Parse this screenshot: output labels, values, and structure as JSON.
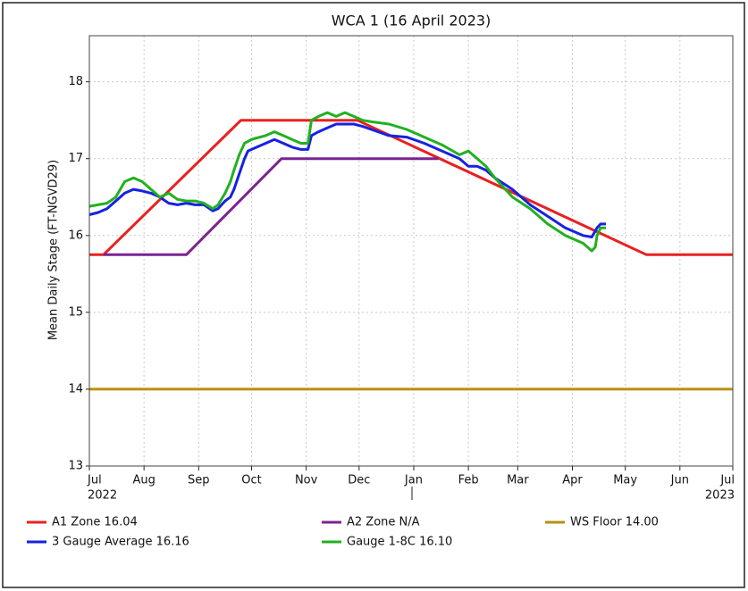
{
  "chart_data": {
    "type": "line",
    "title": "WCA 1 (16 April 2023)",
    "y_label": "Mean Daily Stage (FT-NGVD29)",
    "xlim": [
      0,
      365
    ],
    "xticks": [
      {
        "value": 0,
        "label": "Jul"
      },
      {
        "value": 31,
        "label": "Aug"
      },
      {
        "value": 62,
        "label": "Sep"
      },
      {
        "value": 92,
        "label": "Oct"
      },
      {
        "value": 123,
        "label": "Nov"
      },
      {
        "value": 153,
        "label": "Dec"
      },
      {
        "value": 184,
        "label": "Jan"
      },
      {
        "value": 215,
        "label": "Feb"
      },
      {
        "value": 243,
        "label": "Mar"
      },
      {
        "value": 274,
        "label": "Apr"
      },
      {
        "value": 304,
        "label": "May"
      },
      {
        "value": 335,
        "label": "Jun"
      },
      {
        "value": 365,
        "label": "Jul"
      }
    ],
    "year_labels": [
      {
        "value": 0,
        "label": "2022"
      },
      {
        "value": 365,
        "label": "2023"
      }
    ],
    "ylim": [
      13,
      18.6
    ],
    "yticks": [
      13,
      14,
      15,
      16,
      17,
      18
    ],
    "grid": true,
    "legend": "bottom",
    "series": [
      {
        "name": "A1 Zone 16.04",
        "color": "#e8211f",
        "x": [
          0,
          8,
          86,
          152,
          316,
          365
        ],
        "values": [
          15.75,
          15.75,
          17.5,
          17.5,
          15.75,
          15.75
        ]
      },
      {
        "name": "A2 Zone N/A",
        "color": "#7b2391",
        "x": [
          8,
          55,
          109,
          198
        ],
        "values": [
          15.75,
          15.75,
          17,
          17
        ]
      },
      {
        "name": "WS Floor 14.00",
        "color": "#b8900f",
        "x": [
          0,
          365
        ],
        "values": [
          14,
          14
        ]
      },
      {
        "name": "3 Gauge Average 16.16",
        "color": "#1622e0",
        "x": [
          0,
          5,
          10,
          15,
          20,
          25,
          30,
          35,
          40,
          45,
          50,
          55,
          60,
          65,
          70,
          73,
          77,
          80,
          82,
          85,
          88,
          90,
          95,
          100,
          105,
          110,
          115,
          120,
          124,
          126,
          130,
          135,
          140,
          145,
          150,
          155,
          160,
          170,
          180,
          190,
          200,
          210,
          215,
          220,
          225,
          230,
          240,
          250,
          260,
          270,
          275,
          280,
          285,
          288,
          290,
          293
        ],
        "values": [
          16.27,
          16.3,
          16.35,
          16.45,
          16.55,
          16.6,
          16.58,
          16.55,
          16.5,
          16.42,
          16.4,
          16.42,
          16.4,
          16.4,
          16.32,
          16.35,
          16.45,
          16.5,
          16.6,
          16.8,
          17.0,
          17.1,
          17.15,
          17.2,
          17.25,
          17.2,
          17.15,
          17.12,
          17.12,
          17.3,
          17.35,
          17.4,
          17.45,
          17.45,
          17.45,
          17.42,
          17.38,
          17.3,
          17.28,
          17.2,
          17.1,
          17.0,
          16.9,
          16.9,
          16.85,
          16.75,
          16.6,
          16.4,
          16.25,
          16.1,
          16.05,
          16.0,
          15.98,
          16.1,
          16.15,
          16.15
        ]
      },
      {
        "name": "Gauge 1-8C 16.10",
        "color": "#22b01f",
        "x": [
          0,
          10,
          15,
          20,
          25,
          30,
          35,
          40,
          45,
          50,
          55,
          60,
          65,
          70,
          73,
          77,
          80,
          82,
          85,
          88,
          92,
          95,
          100,
          105,
          110,
          115,
          120,
          124,
          126,
          130,
          135,
          140,
          145,
          150,
          155,
          160,
          170,
          180,
          190,
          200,
          210,
          215,
          220,
          225,
          230,
          240,
          250,
          260,
          270,
          275,
          280,
          285,
          287,
          288,
          290,
          293
        ],
        "values": [
          16.38,
          16.42,
          16.5,
          16.7,
          16.75,
          16.7,
          16.6,
          16.5,
          16.55,
          16.47,
          16.45,
          16.45,
          16.42,
          16.35,
          16.4,
          16.55,
          16.7,
          16.85,
          17.05,
          17.2,
          17.25,
          17.27,
          17.3,
          17.35,
          17.3,
          17.25,
          17.2,
          17.2,
          17.5,
          17.55,
          17.6,
          17.55,
          17.6,
          17.55,
          17.5,
          17.48,
          17.45,
          17.38,
          17.28,
          17.18,
          17.05,
          17.1,
          17.0,
          16.9,
          16.75,
          16.5,
          16.35,
          16.15,
          16.0,
          15.95,
          15.9,
          15.8,
          15.85,
          16.0,
          16.1,
          16.1
        ]
      }
    ]
  }
}
